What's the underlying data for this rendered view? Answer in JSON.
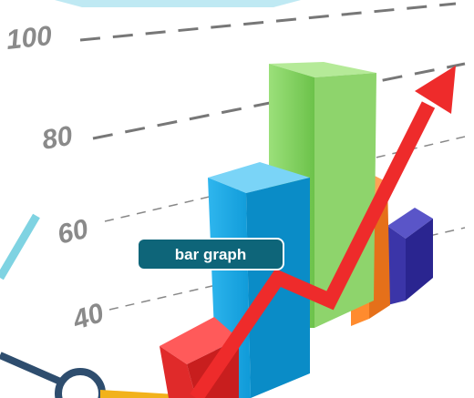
{
  "scale_labels": [
    "100",
    "80",
    "60",
    "40"
  ],
  "badge": {
    "label": "bar graph"
  }
}
